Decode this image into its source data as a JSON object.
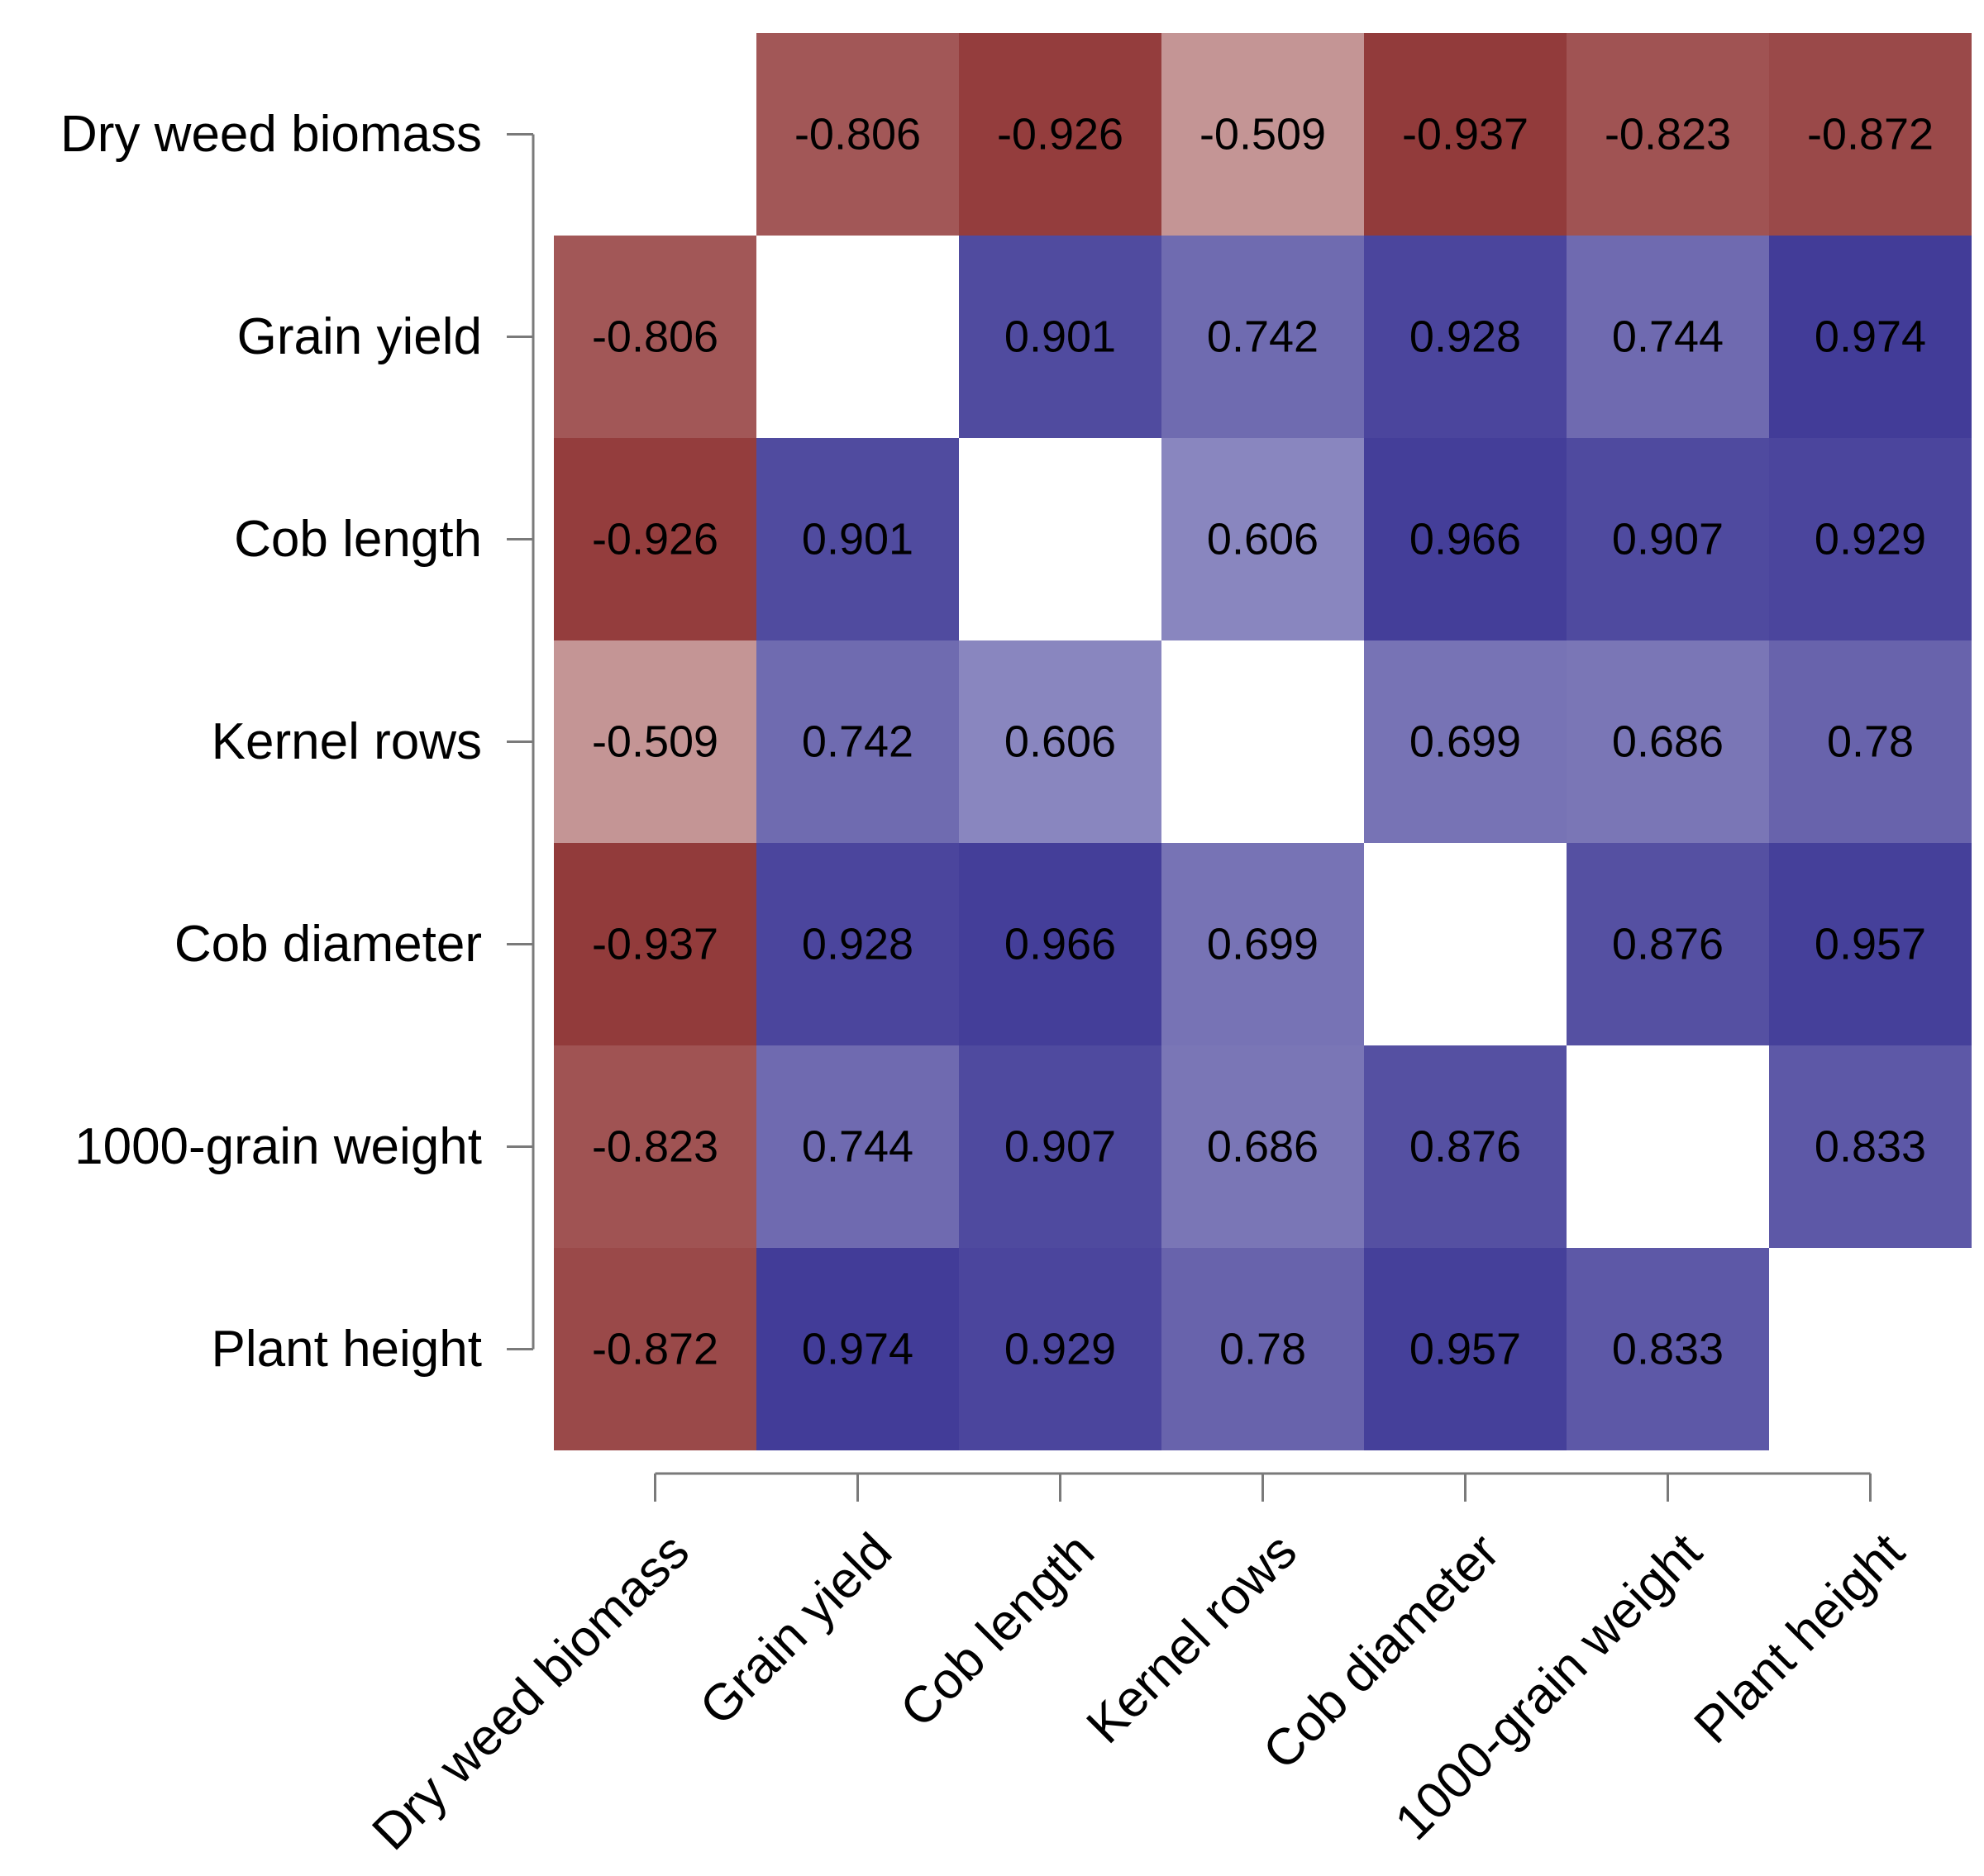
{
  "chart_data": {
    "type": "heatmap",
    "title": "",
    "variables": [
      "Dry weed biomass",
      "Grain yield",
      "Cob length",
      "Kernel rows",
      "Cob diameter",
      "1000-grain weight",
      "Plant height"
    ],
    "row_labels": [
      "Dry weed biomass",
      "Grain yield",
      "Cob length",
      "Kernel rows",
      "Cob diameter",
      "1000-grain weight",
      "Plant height"
    ],
    "column_labels": [
      "Dry weed biomass",
      "Grain yield",
      "Cob length",
      "Kernel rows",
      "Cob diameter",
      "1000-grain weight",
      "Plant height"
    ],
    "value_labels": [
      [
        "",
        "-0.806",
        "-0.926",
        "-0.509",
        "-0.937",
        "-0.823",
        "-0.872"
      ],
      [
        "-0.806",
        "",
        "0.901",
        "0.742",
        "0.928",
        "0.744",
        "0.974"
      ],
      [
        "-0.926",
        "0.901",
        "",
        "0.606",
        "0.966",
        "0.907",
        "0.929"
      ],
      [
        "-0.509",
        "0.742",
        "0.606",
        "",
        "0.699",
        "0.686",
        "0.78"
      ],
      [
        "-0.937",
        "0.928",
        "0.966",
        "0.699",
        "",
        "0.876",
        "0.957"
      ],
      [
        "-0.823",
        "0.744",
        "0.907",
        "0.686",
        "0.876",
        "",
        "0.833"
      ],
      [
        "-0.872",
        "0.974",
        "0.929",
        "0.78",
        "0.957",
        "0.833",
        ""
      ]
    ],
    "diagonal": "blank",
    "color_scale": {
      "negative": "#8b2e2e",
      "positive": "#3d3795",
      "zero": "#ffffff",
      "min": -1,
      "max": 1
    }
  }
}
